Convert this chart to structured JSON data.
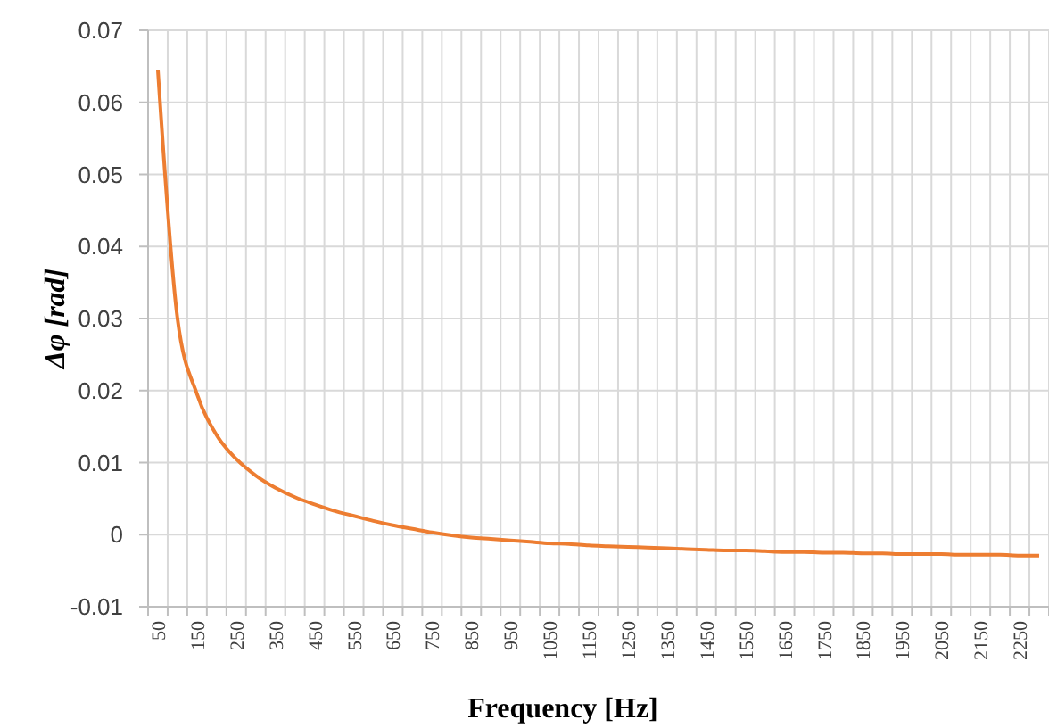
{
  "chart_data": {
    "type": "line",
    "xlabel": "Frequency [Hz]",
    "ylabel": "Δφ [rad]",
    "categories": [
      "50",
      null,
      "150",
      null,
      "250",
      null,
      "350",
      null,
      "450",
      null,
      "550",
      null,
      "650",
      null,
      "750",
      null,
      "850",
      null,
      "950",
      null,
      "1050",
      null,
      "1150",
      null,
      "1250",
      null,
      "1350",
      null,
      "1450",
      null,
      "1550",
      null,
      "1650",
      null,
      "1750",
      null,
      "1850",
      null,
      "1950",
      null,
      "2050",
      null,
      "2150",
      null,
      "2250",
      null
    ],
    "series": [
      {
        "color": "#ed7d31",
        "values": [
          0.0645,
          0.03,
          0.0195,
          0.0138,
          0.0105,
          0.0082,
          0.0065,
          0.0052,
          0.0042,
          0.0033,
          0.0026,
          0.0019,
          0.0013,
          0.0008,
          0.0003,
          -0.0001,
          -0.0004,
          -0.0006,
          -0.0008,
          -0.001,
          -0.0012,
          -0.0013,
          -0.0015,
          -0.0016,
          -0.0017,
          -0.0018,
          -0.0019,
          -0.002,
          -0.0021,
          -0.0022,
          -0.0022,
          -0.0023,
          -0.0024,
          -0.0024,
          -0.0025,
          -0.0025,
          -0.0026,
          -0.0026,
          -0.0027,
          -0.0027,
          -0.0027,
          -0.0028,
          -0.0028,
          -0.0028,
          -0.0029,
          -0.0029
        ]
      }
    ],
    "ylim": [
      -0.01,
      0.07
    ],
    "yticks": [
      -0.01,
      0,
      0.01,
      0.02,
      0.03,
      0.04,
      0.05,
      0.06,
      0.07
    ],
    "grid": true,
    "line_style": "solid",
    "marker": "none"
  }
}
